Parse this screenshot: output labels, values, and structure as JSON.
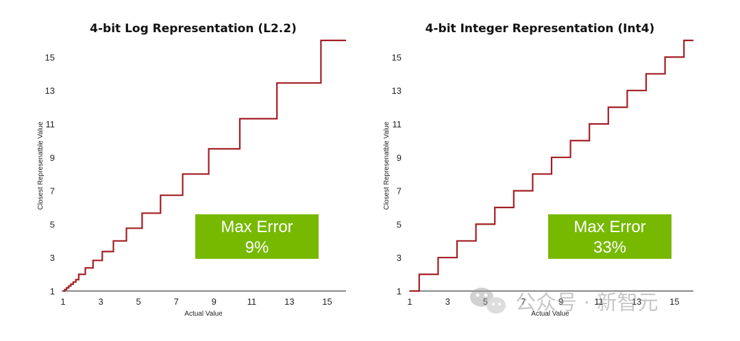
{
  "chart_data": [
    {
      "type": "line",
      "title": "4-bit Log Representation (L2.2)",
      "xlabel": "Actual Value",
      "ylabel": "Closest Represenatble Value",
      "xlim": [
        1,
        16
      ],
      "ylim": [
        1,
        16
      ],
      "xticks": [
        1,
        3,
        5,
        7,
        9,
        11,
        13,
        15
      ],
      "yticks": [
        1,
        3,
        5,
        7,
        9,
        11,
        13,
        15
      ],
      "series": [
        {
          "values_desc": "step",
          "x": [
            1.0,
            1.09,
            1.09,
            1.19,
            1.19,
            1.3,
            1.3,
            1.41,
            1.41,
            1.54,
            1.54,
            1.68,
            1.68,
            1.83,
            1.83,
            2.0,
            2.0,
            2.18,
            2.18,
            2.38,
            2.38,
            2.59,
            2.59,
            2.83,
            2.83,
            3.08,
            3.08,
            3.36,
            3.36,
            3.67,
            3.67,
            4.0,
            4.0,
            4.36,
            4.36,
            4.76,
            4.76,
            5.19,
            5.19,
            5.66,
            5.66,
            6.17,
            6.17,
            6.73,
            6.73,
            7.34,
            7.34,
            8.0,
            8.0,
            8.72,
            8.72,
            9.51,
            9.51,
            10.37,
            10.37,
            11.31,
            11.31,
            12.34,
            12.34,
            13.45,
            13.45,
            14.67,
            14.67,
            16.0
          ],
          "y": [
            1.0,
            1.0,
            1.09,
            1.09,
            1.19,
            1.19,
            1.3,
            1.3,
            1.41,
            1.41,
            1.54,
            1.54,
            1.68,
            1.68,
            2.0,
            2.0,
            2.0,
            2.0,
            2.38,
            2.38,
            2.38,
            2.38,
            2.83,
            2.83,
            2.83,
            2.83,
            3.36,
            3.36,
            3.36,
            3.36,
            4.0,
            4.0,
            4.0,
            4.0,
            4.76,
            4.76,
            4.76,
            4.76,
            5.66,
            5.66,
            5.66,
            5.66,
            6.73,
            6.73,
            6.73,
            6.73,
            8.0,
            8.0,
            8.0,
            8.0,
            9.51,
            9.51,
            9.51,
            9.51,
            11.31,
            11.31,
            11.31,
            11.31,
            13.45,
            13.45,
            13.45,
            13.45,
            16.0,
            16.0
          ]
        }
      ],
      "annotation": {
        "line1": "Max Error",
        "line2": "9%"
      }
    },
    {
      "type": "line",
      "title": "4-bit Integer Representation (Int4)",
      "xlabel": "Actual Value",
      "ylabel": "Closest Represenatble Value",
      "xlim": [
        1,
        16
      ],
      "ylim": [
        1,
        16
      ],
      "xticks": [
        1,
        3,
        5,
        7,
        9,
        11,
        13,
        15
      ],
      "yticks": [
        1,
        3,
        5,
        7,
        9,
        11,
        13,
        15
      ],
      "series": [
        {
          "x": [
            1.0,
            1.5,
            1.5,
            2.5,
            2.5,
            3.5,
            3.5,
            4.5,
            4.5,
            5.5,
            5.5,
            6.5,
            6.5,
            7.5,
            7.5,
            8.5,
            8.5,
            9.5,
            9.5,
            10.5,
            10.5,
            11.5,
            11.5,
            12.5,
            12.5,
            13.5,
            13.5,
            14.5,
            14.5,
            15.5,
            15.5,
            16.0
          ],
          "y": [
            1,
            1,
            2,
            2,
            3,
            3,
            4,
            4,
            5,
            5,
            6,
            6,
            7,
            7,
            8,
            8,
            9,
            9,
            10,
            10,
            11,
            11,
            12,
            12,
            13,
            13,
            14,
            14,
            15,
            15,
            16,
            16
          ]
        }
      ],
      "annotation": {
        "line1": "Max Error",
        "line2": "33%"
      }
    }
  ],
  "watermark": "公众号 · 新智元",
  "colors": {
    "line": "#a21d21",
    "box": "#76b900",
    "axis": "#111111"
  }
}
